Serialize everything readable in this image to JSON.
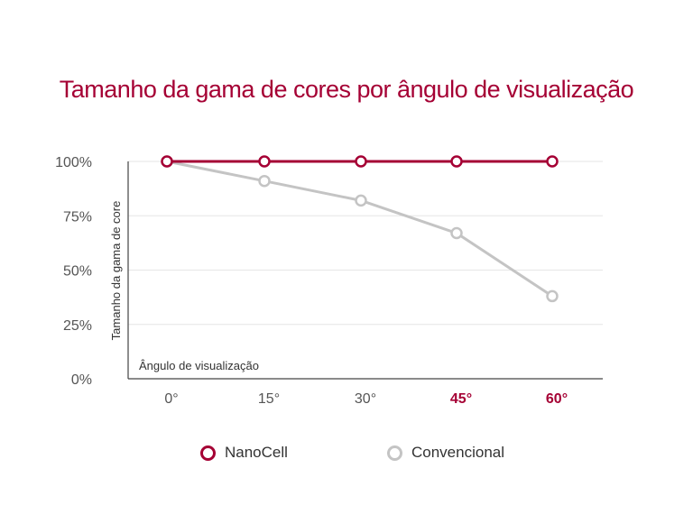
{
  "chart_data": {
    "type": "line",
    "title": "Tamanho da gama de cores por ângulo de visualização",
    "xlabel": "Ângulo de visualização",
    "ylabel": "Tamanho da gama de core",
    "categories": [
      "0°",
      "15°",
      "30°",
      "45°",
      "60°"
    ],
    "highlighted_categories": [
      "45°",
      "60°"
    ],
    "yticks": [
      "0%",
      "25%",
      "50%",
      "75%",
      "100%"
    ],
    "ytick_values": [
      0,
      25,
      50,
      75,
      100
    ],
    "ylim": [
      0,
      100
    ],
    "grid": true,
    "legend_position": "bottom",
    "series": [
      {
        "name": "NanoCell",
        "values": [
          100,
          100,
          100,
          100,
          100
        ],
        "color": "#a50034"
      },
      {
        "name": "Convencional",
        "values": [
          100,
          91,
          82,
          67,
          38
        ],
        "color": "#c4c4c4"
      }
    ]
  }
}
